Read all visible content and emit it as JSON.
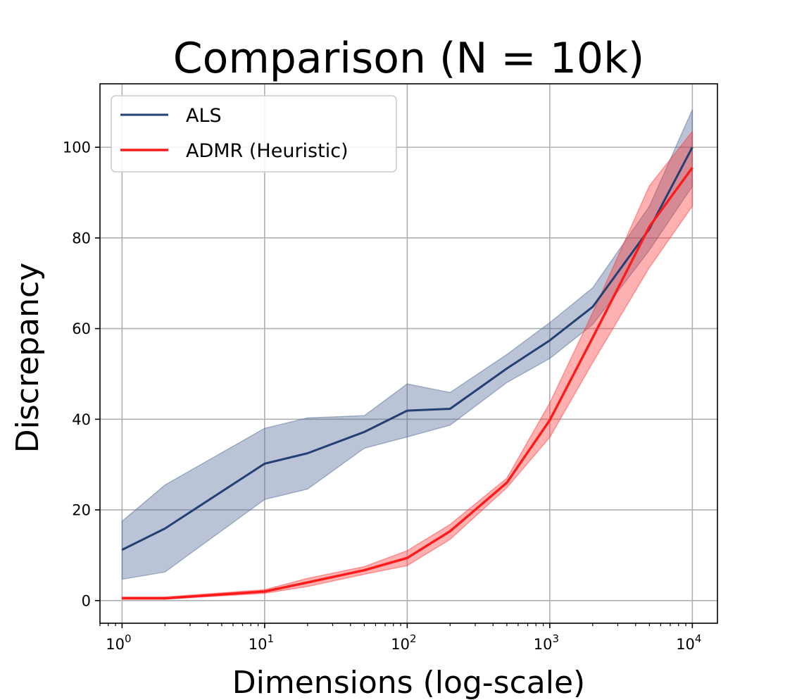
{
  "chart_data": {
    "type": "line",
    "title": "Comparison (N = 10k)",
    "xlabel": "Dimensions (log-scale)",
    "ylabel": "Discrepancy",
    "x_scale": "log",
    "x": [
      1,
      2,
      10,
      20,
      50,
      100,
      200,
      500,
      1000,
      2000,
      5000,
      10000
    ],
    "xlim": [
      0.7,
      15000
    ],
    "ylim": [
      -5,
      114
    ],
    "y_ticks": [
      0,
      20,
      40,
      60,
      80,
      100
    ],
    "y_tick_labels": [
      "0",
      "20",
      "40",
      "60",
      "80",
      "100"
    ],
    "x_ticks": [
      1,
      10,
      100,
      1000,
      10000
    ],
    "x_tick_labels": [
      {
        "base": "10",
        "exp": "0"
      },
      {
        "base": "10",
        "exp": "1"
      },
      {
        "base": "10",
        "exp": "2"
      },
      {
        "base": "10",
        "exp": "3"
      },
      {
        "base": "10",
        "exp": "4"
      }
    ],
    "grid": true,
    "legend_position": "top-left",
    "series": [
      {
        "name": "ALS",
        "color": "#233f74",
        "values": [
          11.2,
          15.9,
          30.2,
          32.5,
          37.2,
          41.9,
          42.3,
          51.2,
          57.4,
          64.8,
          82.0,
          100.0
        ],
        "lower": [
          4.7,
          6.3,
          22.3,
          24.6,
          33.6,
          36.1,
          38.7,
          48.1,
          53.4,
          60.9,
          77.3,
          91.4
        ],
        "upper": [
          17.5,
          25.5,
          38.0,
          40.3,
          40.8,
          47.8,
          45.9,
          54.3,
          61.3,
          69.0,
          87.0,
          108.3
        ]
      },
      {
        "name": "ADMR (Heuristic)",
        "color": "#ff1a1a",
        "values": [
          0.5,
          0.5,
          2.0,
          4.0,
          6.7,
          9.4,
          15.3,
          26.0,
          39.8,
          58.0,
          82.5,
          95.5
        ],
        "lower": [
          0.3,
          0.3,
          1.6,
          3.1,
          5.8,
          7.7,
          13.5,
          24.9,
          36.0,
          52.5,
          73.5,
          87.0
        ],
        "upper": [
          0.8,
          0.8,
          2.4,
          4.9,
          7.5,
          11.0,
          16.8,
          27.0,
          43.6,
          63.5,
          91.5,
          103.5
        ]
      }
    ]
  }
}
